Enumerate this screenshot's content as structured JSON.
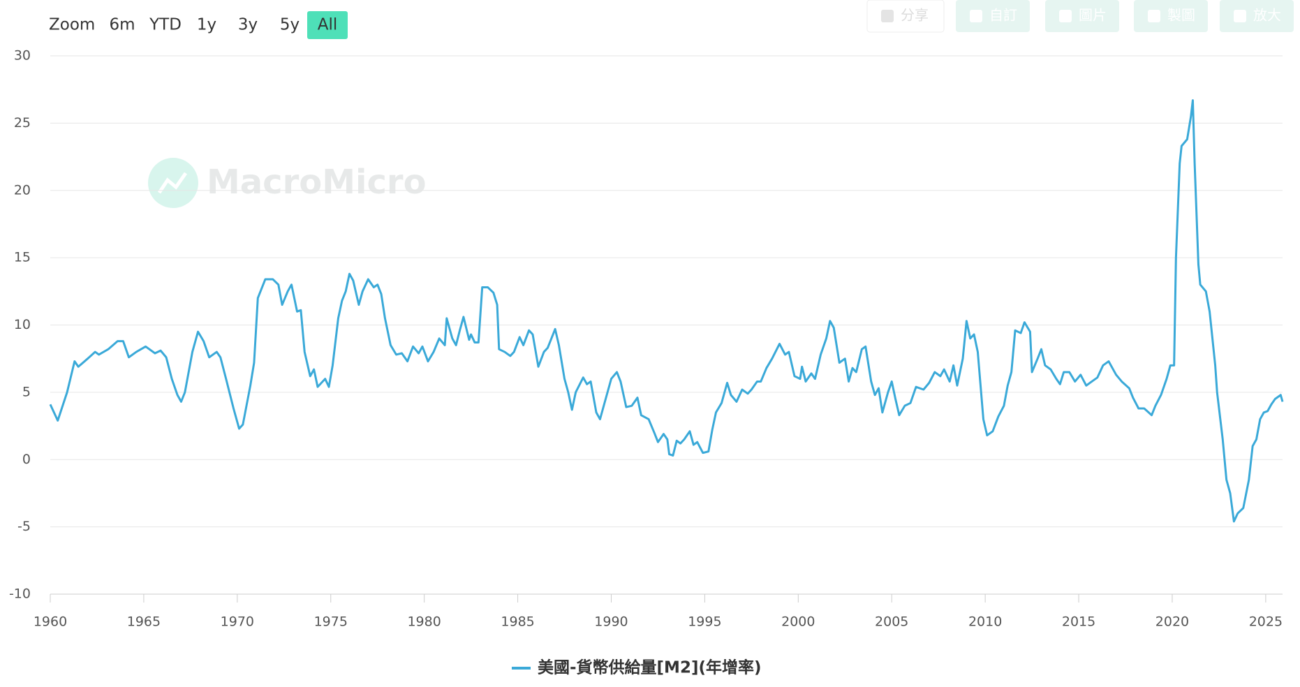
{
  "range_selector": {
    "label": "Zoom",
    "buttons": [
      "6m",
      "YTD",
      "1y",
      "3y",
      "5y",
      "All"
    ],
    "selected": 5
  },
  "toolbar": [
    "分享",
    "自訂",
    "圖片",
    "製圖",
    "放大"
  ],
  "watermark": "MacroMicro",
  "chart_data": {
    "type": "line",
    "xlim": [
      1960,
      2025.9
    ],
    "xticks": [
      1960,
      1965,
      1970,
      1975,
      1980,
      1985,
      1990,
      1995,
      2000,
      2005,
      2010,
      2015,
      2020,
      2025
    ],
    "ylim": [
      -10,
      30
    ],
    "yticks": [
      -10,
      -5,
      0,
      5,
      10,
      15,
      20,
      25,
      30
    ],
    "grid": true,
    "series": [
      {
        "name": "美國-貨幣供給量[M2](年增率)",
        "color": "#3aa9d8",
        "x": [
          1960,
          1960.4,
          1960.9,
          1961.3,
          1961.5,
          1962,
          1962.4,
          1962.6,
          1963.1,
          1963.6,
          1963.9,
          1964.2,
          1964.6,
          1965.1,
          1965.6,
          1965.9,
          1966.2,
          1966.5,
          1966.8,
          1967,
          1967.2,
          1967.6,
          1967.9,
          1968.2,
          1968.5,
          1968.9,
          1969.1,
          1969.4,
          1969.8,
          1970.1,
          1970.3,
          1970.7,
          1970.9,
          1971.1,
          1971.5,
          1971.9,
          1972.2,
          1972.4,
          1972.7,
          1972.9,
          1973.2,
          1973.4,
          1973.6,
          1973.9,
          1974.1,
          1974.3,
          1974.7,
          1974.9,
          1975.1,
          1975.4,
          1975.6,
          1975.8,
          1976,
          1976.2,
          1976.5,
          1976.7,
          1977,
          1977.3,
          1977.5,
          1977.7,
          1977.9,
          1978.2,
          1978.5,
          1978.8,
          1979.1,
          1979.4,
          1979.7,
          1979.9,
          1980.2,
          1980.5,
          1980.8,
          1981.1,
          1981.2,
          1981.5,
          1981.7,
          1981.9,
          1982.1,
          1982.4,
          1982.5,
          1982.7,
          1982.9,
          1983.1,
          1983.4,
          1983.7,
          1983.9,
          1984,
          1984.3,
          1984.6,
          1984.8,
          1985.1,
          1985.3,
          1985.6,
          1985.8,
          1986.1,
          1986.4,
          1986.6,
          1987,
          1987.2,
          1987.5,
          1987.7,
          1987.9,
          1988.1,
          1988.5,
          1988.7,
          1988.9,
          1989.2,
          1989.4,
          1989.7,
          1990,
          1990.3,
          1990.5,
          1990.8,
          1991.1,
          1991.4,
          1991.6,
          1992,
          1992.3,
          1992.5,
          1992.8,
          1993,
          1993.1,
          1993.3,
          1993.5,
          1993.7,
          1993.9,
          1994.2,
          1994.4,
          1994.6,
          1994.9,
          1995.2,
          1995.4,
          1995.6,
          1995.9,
          1996.2,
          1996.4,
          1996.7,
          1997,
          1997.3,
          1997.5,
          1997.8,
          1998,
          1998.3,
          1998.6,
          1999,
          1999.3,
          1999.5,
          1999.8,
          2000.1,
          2000.2,
          2000.4,
          2000.7,
          2000.9,
          2001.2,
          2001.5,
          2001.7,
          2001.9,
          2002.2,
          2002.5,
          2002.7,
          2002.9,
          2003.1,
          2003.4,
          2003.6,
          2003.9,
          2004.1,
          2004.3,
          2004.5,
          2004.8,
          2005,
          2005.2,
          2005.4,
          2005.7,
          2006,
          2006.3,
          2006.7,
          2007,
          2007.3,
          2007.6,
          2007.8,
          2008.1,
          2008.3,
          2008.5,
          2008.8,
          2009,
          2009.2,
          2009.4,
          2009.6,
          2009.9,
          2010.1,
          2010.4,
          2010.7,
          2011,
          2011.2,
          2011.4,
          2011.6,
          2011.9,
          2012.1,
          2012.4,
          2012.5,
          2012.8,
          2013,
          2013.2,
          2013.5,
          2013.8,
          2014,
          2014.2,
          2014.5,
          2014.8,
          2015.1,
          2015.4,
          2015.7,
          2016,
          2016.3,
          2016.6,
          2017,
          2017.3,
          2017.7,
          2017.9,
          2018.2,
          2018.5,
          2018.9,
          2019.1,
          2019.4,
          2019.7,
          2019.9,
          2020.1,
          2020.2,
          2020.4,
          2020.5,
          2020.8,
          2021,
          2021.1,
          2021.2,
          2021.4,
          2021.5,
          2021.8,
          2022,
          2022.3,
          2022.4,
          2022.7,
          2022.9,
          2023.1,
          2023.3,
          2023.5,
          2023.8,
          2024.1,
          2024.3,
          2024.5,
          2024.7,
          2024.9,
          2025.1,
          2025.3,
          2025.5,
          2025.8,
          2025.9
        ],
        "values": [
          4.1,
          2.9,
          5,
          7.3,
          6.9,
          7.5,
          8,
          7.8,
          8.2,
          8.8,
          8.8,
          7.6,
          8,
          8.4,
          7.9,
          8.1,
          7.6,
          6,
          4.8,
          4.3,
          5,
          8,
          9.5,
          8.8,
          7.6,
          8,
          7.6,
          6,
          3.8,
          2.3,
          2.6,
          5.5,
          7.2,
          12,
          13.4,
          13.4,
          13,
          11.5,
          12.5,
          13,
          11,
          11.1,
          8,
          6.2,
          6.7,
          5.4,
          6,
          5.4,
          7,
          10.5,
          11.8,
          12.5,
          13.8,
          13.3,
          11.5,
          12.5,
          13.4,
          12.8,
          13,
          12.3,
          10.5,
          8.5,
          7.8,
          7.9,
          7.3,
          8.4,
          7.9,
          8.4,
          7.3,
          8,
          9,
          8.5,
          10.5,
          9,
          8.5,
          9.6,
          10.6,
          8.9,
          9.3,
          8.7,
          8.7,
          12.8,
          12.8,
          12.4,
          11.5,
          8.2,
          8,
          7.7,
          8,
          9.1,
          8.5,
          9.6,
          9.3,
          6.9,
          8,
          8.3,
          9.7,
          8.5,
          6,
          5,
          3.7,
          5,
          6.1,
          5.6,
          5.8,
          3.5,
          3,
          4.5,
          6,
          6.5,
          5.8,
          3.9,
          4,
          4.6,
          3.3,
          3,
          2,
          1.3,
          1.9,
          1.5,
          0.4,
          0.3,
          1.4,
          1.2,
          1.5,
          2.1,
          1.1,
          1.3,
          0.5,
          0.6,
          2.2,
          3.5,
          4.2,
          5.7,
          4.8,
          4.3,
          5.2,
          4.9,
          5.2,
          5.8,
          5.8,
          6.8,
          7.5,
          8.6,
          7.8,
          8,
          6.2,
          6,
          6.9,
          5.8,
          6.4,
          6,
          7.8,
          9,
          10.3,
          9.8,
          7.2,
          7.5,
          5.8,
          6.8,
          6.5,
          8.2,
          8.4,
          5.8,
          4.8,
          5.3,
          3.5,
          5,
          5.8,
          4.5,
          3.3,
          4,
          4.2,
          5.4,
          5.2,
          5.7,
          6.5,
          6.2,
          6.7,
          5.8,
          7,
          5.5,
          7.5,
          10.3,
          9,
          9.3,
          8,
          3,
          1.8,
          2.1,
          3.2,
          4,
          5.5,
          6.5,
          9.6,
          9.4,
          10.2,
          9.5,
          6.5,
          7.5,
          8.2,
          7,
          6.7,
          6,
          5.6,
          6.5,
          6.5,
          5.8,
          6.3,
          5.5,
          5.8,
          6.1,
          7,
          7.3,
          6.3,
          5.8,
          5.3,
          4.6,
          3.8,
          3.8,
          3.3,
          4,
          4.8,
          6,
          7,
          7,
          15,
          22,
          23.3,
          23.8,
          25.5,
          26.7,
          22,
          14.5,
          13,
          12.5,
          11,
          7,
          5,
          1.5,
          -1.5,
          -2.5,
          -4.6,
          -4,
          -3.6,
          -1.5,
          1,
          1.5,
          3,
          3.5,
          3.6,
          4.1,
          4.5,
          4.8,
          4.3
        ]
      }
    ]
  }
}
